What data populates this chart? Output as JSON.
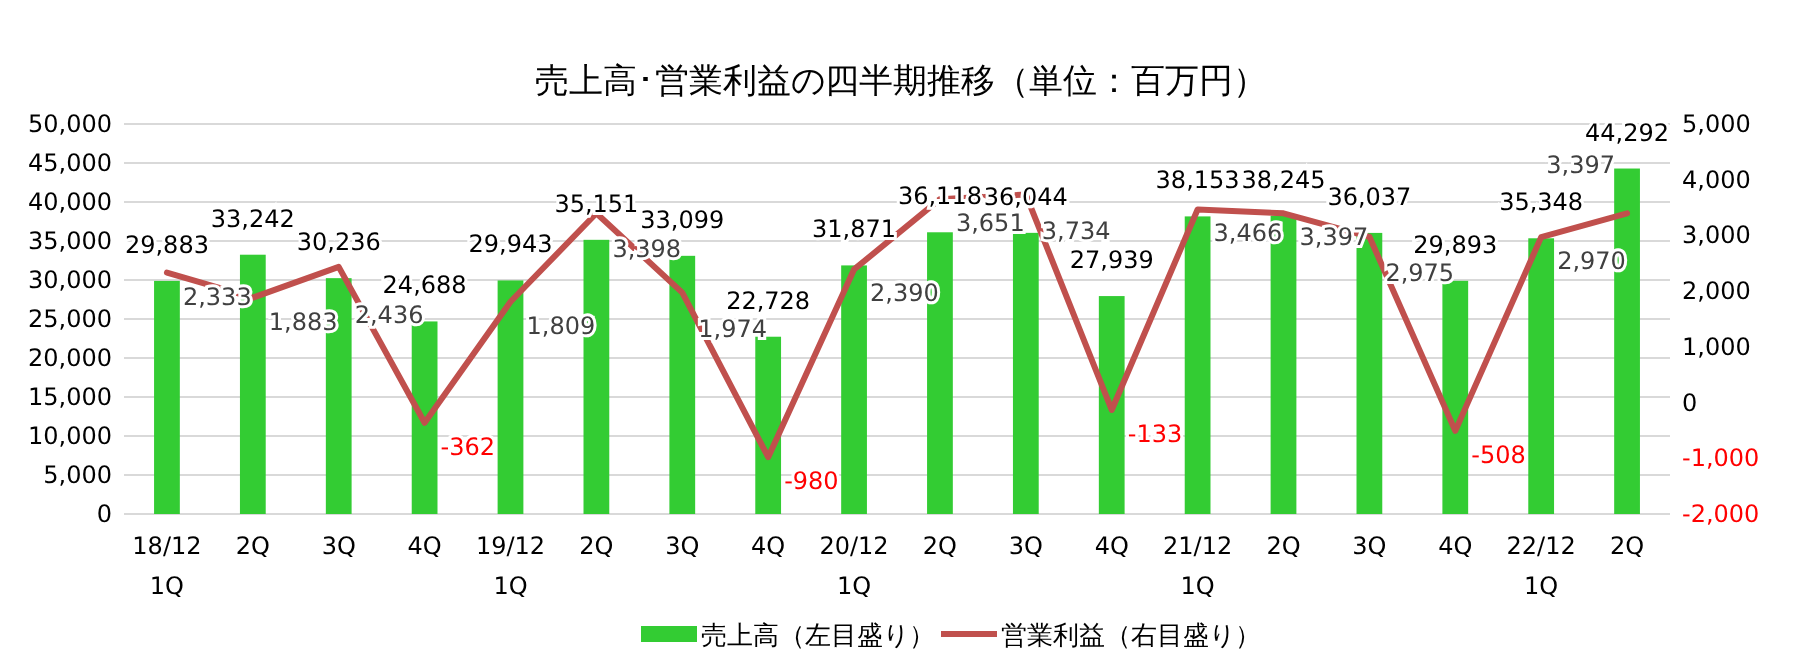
{
  "chart_data": {
    "type": "bar",
    "title": "売上高･営業利益の四半期推移（単位：百万円）",
    "categories": [
      "18/12\n1Q",
      "2Q",
      "3Q",
      "4Q",
      "19/12\n1Q",
      "2Q",
      "3Q",
      "4Q",
      "20/12\n1Q",
      "2Q",
      "3Q",
      "4Q",
      "21/12\n1Q",
      "2Q",
      "3Q",
      "4Q",
      "22/12\n1Q",
      "2Q"
    ],
    "series": [
      {
        "name": "売上高（左目盛り）",
        "color": "#33cc33",
        "values": [
          29883,
          33242,
          30236,
          24688,
          29943,
          35151,
          33099,
          22728,
          31871,
          36118,
          36044,
          27939,
          38153,
          38245,
          36037,
          29893,
          35348,
          44292
        ],
        "value_labels": [
          "29,883",
          "33,242",
          "30,236",
          "24,688",
          "29,943",
          "35,151",
          "33,099",
          "22,728",
          "31,871",
          "36,118",
          "36,044",
          "27,939",
          "38,153",
          "38,245",
          "36,037",
          "29,893",
          "35,348",
          "44,292"
        ]
      },
      {
        "name": "営業利益（右目盛り）",
        "type": "line",
        "axis": "y2",
        "color": "#c0504d",
        "values": [
          2333,
          1883,
          2436,
          -362,
          1809,
          3398,
          1974,
          -980,
          2390,
          3651,
          3734,
          -133,
          3466,
          3397,
          2975,
          -508,
          2970,
          3397
        ],
        "value_labels": [
          "2,333",
          "1,883",
          "2,436",
          "-362",
          "1,809",
          "3,398",
          "1,974",
          "-980",
          "2,390",
          "3,651",
          "3,734",
          "-133",
          "3,466",
          "3,397",
          "2,975",
          "-508",
          "2,970",
          "3,397"
        ]
      }
    ],
    "ylim": [
      0,
      50000
    ],
    "yticks": [
      {
        "value": 0,
        "label": "0"
      },
      {
        "value": 5000,
        "label": "5,000"
      },
      {
        "value": 10000,
        "label": "10,000"
      },
      {
        "value": 15000,
        "label": "15,000"
      },
      {
        "value": 20000,
        "label": "20,000"
      },
      {
        "value": 25000,
        "label": "25,000"
      },
      {
        "value": 30000,
        "label": "30,000"
      },
      {
        "value": 35000,
        "label": "35,000"
      },
      {
        "value": 40000,
        "label": "40,000"
      },
      {
        "value": 45000,
        "label": "45,000"
      },
      {
        "value": 50000,
        "label": "50,000"
      }
    ],
    "y2lim": [
      -2000,
      5000
    ],
    "y2ticks": [
      {
        "value": -2000,
        "label": "-2,000"
      },
      {
        "value": -1000,
        "label": "-1,000"
      },
      {
        "value": 0,
        "label": "0"
      },
      {
        "value": 1000,
        "label": "1,000"
      },
      {
        "value": 2000,
        "label": "2,000"
      },
      {
        "value": 3000,
        "label": "3,000"
      },
      {
        "value": 4000,
        "label": "4,000"
      },
      {
        "value": 5000,
        "label": "5,000"
      }
    ],
    "grid": "y",
    "legend": "bottom",
    "marker": "none",
    "line_style": "solid"
  }
}
